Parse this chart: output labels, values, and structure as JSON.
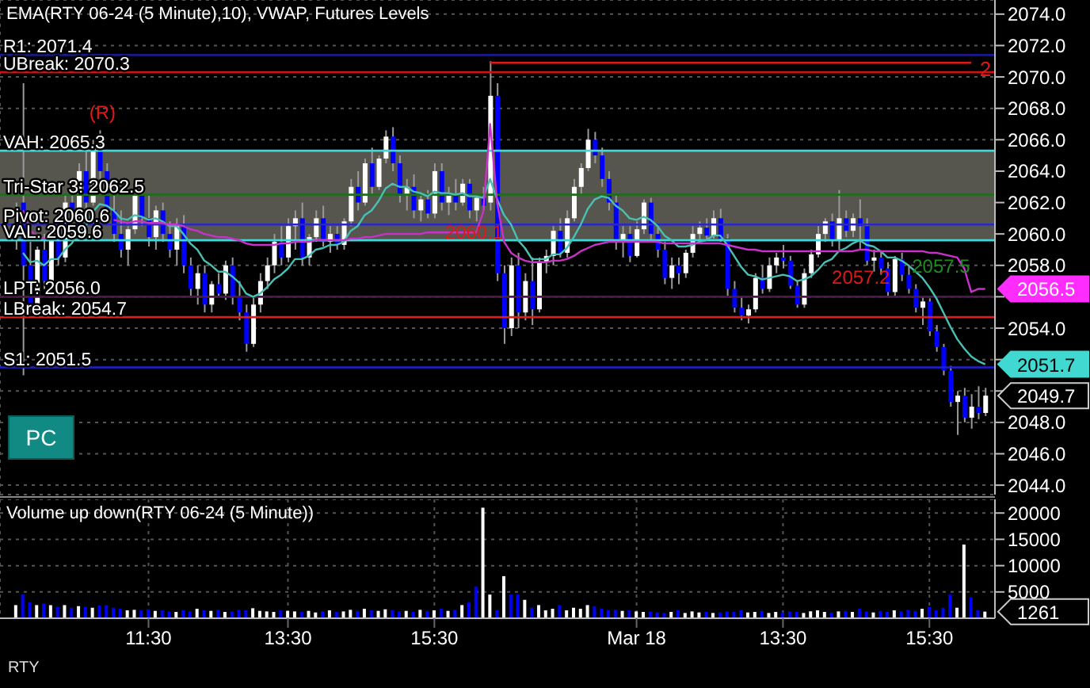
{
  "chart_data": [
    {
      "type": "candlestick",
      "title": "EMA(RTY 06-24 (5 Minute),10), VWAP, Futures Levels",
      "tick_labels": "y",
      "grid": true,
      "categories": [
        null,
        null,
        null,
        null,
        null,
        null,
        null,
        null,
        null,
        null,
        null,
        null,
        null,
        null,
        null,
        null,
        null,
        null,
        null,
        null,
        null,
        null,
        null,
        null,
        null,
        null,
        null,
        null,
        null,
        null,
        null,
        null,
        null,
        null,
        null,
        null,
        null,
        null,
        null,
        null,
        null,
        null,
        null,
        null,
        null,
        null,
        null,
        null,
        null,
        null,
        null,
        null,
        null,
        null,
        null,
        null,
        null,
        null,
        null,
        null,
        null,
        null,
        null,
        null,
        null,
        null,
        null,
        null,
        null,
        null,
        null,
        null,
        null,
        null,
        null,
        null,
        null,
        null,
        null,
        null,
        null,
        null,
        null,
        null,
        null,
        null,
        null,
        null,
        null,
        null,
        null,
        null,
        null,
        null,
        null,
        null,
        null,
        null,
        null,
        null,
        null,
        null,
        null,
        null,
        null,
        null,
        null,
        null,
        null,
        null,
        null,
        null,
        null,
        null,
        null,
        null,
        null,
        null,
        null,
        null,
        null,
        null,
        null,
        null,
        null,
        null,
        null,
        null,
        null,
        null,
        null,
        null,
        null,
        null,
        null,
        null,
        null,
        null,
        null,
        null
      ],
      "ohlc": [
        [
          2061.0,
          2062.0,
          2059.0,
          2061.5
        ],
        [
          2062.0,
          2069.6,
          2051.0,
          2058.0
        ],
        [
          2058.0,
          2059.5,
          2055.0,
          2055.5
        ],
        [
          2055.5,
          2059.2,
          2054.8,
          2059.0
        ],
        [
          2059.0,
          2060.0,
          2056.5,
          2057.0
        ],
        [
          2057.0,
          2060.5,
          2056.8,
          2060.2
        ],
        [
          2060.2,
          2061.0,
          2058.0,
          2058.5
        ],
        [
          2058.5,
          2062.5,
          2058.2,
          2062.0
        ],
        [
          2062.0,
          2063.0,
          2060.5,
          2061.0
        ],
        [
          2061.0,
          2064.5,
          2060.8,
          2064.0
        ],
        [
          2064.0,
          2065.5,
          2061.5,
          2062.0
        ],
        [
          2062.0,
          2066.0,
          2061.8,
          2065.5
        ],
        [
          2065.5,
          2066.6,
          2063.5,
          2064.0
        ],
        [
          2064.0,
          2064.5,
          2061.0,
          2061.5
        ],
        [
          2061.5,
          2062.5,
          2059.5,
          2060.0
        ],
        [
          2060.0,
          2061.5,
          2058.5,
          2059.0
        ],
        [
          2059.0,
          2060.5,
          2058.0,
          2060.3
        ],
        [
          2060.3,
          2062.8,
          2060.0,
          2062.5
        ],
        [
          2062.5,
          2063.5,
          2060.5,
          2061.0
        ],
        [
          2061.0,
          2062.5,
          2059.2,
          2059.8
        ],
        [
          2059.8,
          2061.8,
          2059.0,
          2061.5
        ],
        [
          2061.5,
          2062.0,
          2059.5,
          2060.0
        ],
        [
          2060.0,
          2060.8,
          2058.5,
          2059.0
        ],
        [
          2059.0,
          2061.0,
          2058.0,
          2060.5
        ],
        [
          2060.5,
          2061.2,
          2057.5,
          2058.0
        ],
        [
          2058.0,
          2058.5,
          2056.0,
          2056.5
        ],
        [
          2056.5,
          2058.0,
          2055.5,
          2057.5
        ],
        [
          2057.5,
          2058.0,
          2055.0,
          2055.5
        ],
        [
          2055.5,
          2057.0,
          2055.0,
          2056.8
        ],
        [
          2056.8,
          2057.5,
          2056.0,
          2056.2
        ],
        [
          2056.2,
          2058.3,
          2055.8,
          2058.0
        ],
        [
          2058.0,
          2058.5,
          2055.5,
          2056.0
        ],
        [
          2056.0,
          2057.0,
          2054.5,
          2055.0
        ],
        [
          2055.0,
          2055.5,
          2052.5,
          2053.0
        ],
        [
          2053.0,
          2056.0,
          2052.8,
          2055.5
        ],
        [
          2055.5,
          2057.5,
          2055.0,
          2057.0
        ],
        [
          2057.0,
          2058.5,
          2056.5,
          2058.0
        ],
        [
          2058.0,
          2060.0,
          2057.5,
          2059.5
        ],
        [
          2059.5,
          2060.5,
          2058.0,
          2058.5
        ],
        [
          2058.5,
          2061.0,
          2058.2,
          2060.5
        ],
        [
          2060.5,
          2061.5,
          2059.0,
          2061.0
        ],
        [
          2061.0,
          2062.0,
          2058.0,
          2058.5
        ],
        [
          2058.5,
          2060.0,
          2058.0,
          2059.8
        ],
        [
          2059.8,
          2061.5,
          2059.5,
          2061.0
        ],
        [
          2061.0,
          2061.8,
          2059.2,
          2059.5
        ],
        [
          2059.5,
          2060.5,
          2058.8,
          2060.0
        ],
        [
          2060.0,
          2060.5,
          2059.0,
          2059.3
        ],
        [
          2059.3,
          2061.0,
          2059.0,
          2060.8
        ],
        [
          2060.8,
          2063.5,
          2060.5,
          2063.0
        ],
        [
          2063.0,
          2064.0,
          2061.5,
          2062.0
        ],
        [
          2062.0,
          2064.8,
          2061.8,
          2064.5
        ],
        [
          2064.5,
          2065.5,
          2062.5,
          2063.0
        ],
        [
          2063.0,
          2065.0,
          2062.8,
          2064.8
        ],
        [
          2064.8,
          2066.6,
          2064.5,
          2066.2
        ],
        [
          2066.2,
          2066.8,
          2064.0,
          2064.5
        ],
        [
          2064.5,
          2065.0,
          2062.0,
          2062.5
        ],
        [
          2062.5,
          2063.5,
          2061.5,
          2063.0
        ],
        [
          2063.0,
          2063.8,
          2061.0,
          2061.5
        ],
        [
          2061.5,
          2062.5,
          2060.8,
          2062.2
        ],
        [
          2062.2,
          2062.8,
          2061.0,
          2061.3
        ],
        [
          2061.3,
          2064.5,
          2061.0,
          2064.0
        ],
        [
          2064.0,
          2064.5,
          2061.5,
          2062.0
        ],
        [
          2062.0,
          2063.0,
          2061.2,
          2062.5
        ],
        [
          2062.5,
          2063.5,
          2061.5,
          2062.0
        ],
        [
          2062.0,
          2063.5,
          2061.8,
          2063.2
        ],
        [
          2063.2,
          2063.5,
          2061.0,
          2061.5
        ],
        [
          2061.5,
          2062.5,
          2060.8,
          2062.3
        ],
        [
          2062.3,
          2063.0,
          2061.5,
          2061.8
        ],
        [
          2062.0,
          2071.0,
          2061.5,
          2068.8
        ],
        [
          2068.8,
          2069.6,
          2057.0,
          2057.5
        ],
        [
          2057.5,
          2058.0,
          2053.0,
          2054.0
        ],
        [
          2054.0,
          2058.5,
          2053.5,
          2058.0
        ],
        [
          2058.0,
          2058.8,
          2054.0,
          2055.0
        ],
        [
          2055.0,
          2057.5,
          2054.5,
          2057.0
        ],
        [
          2057.0,
          2058.5,
          2054.2,
          2055.2
        ],
        [
          2055.2,
          2058.5,
          2055.0,
          2058.2
        ],
        [
          2058.2,
          2059.0,
          2057.5,
          2058.6
        ],
        [
          2058.6,
          2060.5,
          2058.0,
          2060.2
        ],
        [
          2060.2,
          2061.0,
          2058.5,
          2058.8
        ],
        [
          2058.8,
          2061.5,
          2058.5,
          2061.0
        ],
        [
          2061.0,
          2063.5,
          2060.8,
          2063.0
        ],
        [
          2063.0,
          2064.5,
          2062.5,
          2064.2
        ],
        [
          2064.2,
          2066.7,
          2064.0,
          2066.0
        ],
        [
          2066.0,
          2066.5,
          2064.5,
          2065.0
        ],
        [
          2065.0,
          2065.5,
          2063.0,
          2063.5
        ],
        [
          2063.5,
          2064.0,
          2061.5,
          2062.0
        ],
        [
          2062.0,
          2062.5,
          2059.0,
          2059.5
        ],
        [
          2059.5,
          2060.5,
          2058.5,
          2060.0
        ],
        [
          2060.0,
          2060.5,
          2058.2,
          2058.6
        ],
        [
          2058.6,
          2060.8,
          2058.5,
          2060.3
        ],
        [
          2060.3,
          2062.2,
          2060.0,
          2062.0
        ],
        [
          2062.0,
          2062.3,
          2059.5,
          2060.0
        ],
        [
          2060.0,
          2060.5,
          2058.5,
          2059.0
        ],
        [
          2059.0,
          2059.5,
          2056.8,
          2057.2
        ],
        [
          2057.2,
          2058.5,
          2056.5,
          2058.0
        ],
        [
          2058.0,
          2058.5,
          2056.8,
          2057.5
        ],
        [
          2057.5,
          2059.0,
          2057.2,
          2058.8
        ],
        [
          2058.8,
          2060.5,
          2058.5,
          2060.0
        ],
        [
          2060.0,
          2060.8,
          2059.5,
          2060.4
        ],
        [
          2060.4,
          2061.0,
          2059.6,
          2059.9
        ],
        [
          2059.9,
          2061.5,
          2059.7,
          2061.0
        ],
        [
          2061.0,
          2061.6,
          2059.5,
          2059.7
        ],
        [
          2059.7,
          2060.0,
          2056.0,
          2056.5
        ],
        [
          2056.5,
          2057.0,
          2055.0,
          2055.3
        ],
        [
          2055.3,
          2056.0,
          2054.5,
          2054.8
        ],
        [
          2054.8,
          2055.5,
          2054.3,
          2055.2
        ],
        [
          2055.2,
          2057.5,
          2055.0,
          2057.2
        ],
        [
          2057.2,
          2058.0,
          2056.2,
          2056.5
        ],
        [
          2056.5,
          2058.5,
          2056.3,
          2058.0
        ],
        [
          2058.0,
          2058.8,
          2057.5,
          2058.5
        ],
        [
          2058.5,
          2059.3,
          2057.8,
          2058.3
        ],
        [
          2058.3,
          2058.6,
          2056.5,
          2056.7
        ],
        [
          2056.7,
          2057.0,
          2055.3,
          2055.5
        ],
        [
          2055.5,
          2057.8,
          2055.3,
          2057.5
        ],
        [
          2057.5,
          2059.0,
          2057.2,
          2058.7
        ],
        [
          2058.7,
          2060.5,
          2058.5,
          2060.0
        ],
        [
          2060.0,
          2061.0,
          2059.5,
          2060.8
        ],
        [
          2060.8,
          2061.3,
          2059.2,
          2059.6
        ],
        [
          2059.6,
          2062.8,
          2059.0,
          2061.0
        ],
        [
          2061.0,
          2061.5,
          2059.8,
          2060.2
        ],
        [
          2060.2,
          2061.3,
          2059.8,
          2061.0
        ],
        [
          2061.0,
          2062.2,
          2059.0,
          2060.5
        ],
        [
          2060.5,
          2061.0,
          2058.0,
          2058.3
        ],
        [
          2058.3,
          2059.0,
          2057.6,
          2058.5
        ],
        [
          2058.5,
          2058.9,
          2057.4,
          2057.8
        ],
        [
          2057.8,
          2058.2,
          2056.0,
          2056.3
        ],
        [
          2056.3,
          2058.6,
          2056.0,
          2058.4
        ],
        [
          2058.4,
          2058.8,
          2057.0,
          2057.4
        ],
        [
          2057.4,
          2058.0,
          2056.2,
          2056.5
        ],
        [
          2056.5,
          2056.8,
          2055.0,
          2055.3
        ],
        [
          2055.3,
          2056.0,
          2054.2,
          2055.7
        ],
        [
          2055.7,
          2055.9,
          2053.5,
          2053.8
        ],
        [
          2053.8,
          2054.2,
          2052.5,
          2052.8
        ],
        [
          2052.8,
          2053.0,
          2051.0,
          2051.3
        ],
        [
          2051.3,
          2051.6,
          2049.0,
          2049.3
        ],
        [
          2049.3,
          2050.0,
          2047.2,
          2049.7
        ],
        [
          2049.7,
          2050.2,
          2048.0,
          2048.3
        ],
        [
          2048.3,
          2049.8,
          2047.6,
          2049.0
        ],
        [
          2049.0,
          2050.3,
          2048.2,
          2048.6
        ],
        [
          2048.6,
          2050.2,
          2048.4,
          2049.7
        ]
      ],
      "colors": [
        "#ffffff",
        "#0000ff",
        "#0000ff",
        "#ffffff",
        "#0000ff",
        "#ffffff",
        "#0000ff",
        "#ffffff",
        "#0000ff",
        "#ffffff",
        "#0000ff",
        "#ffffff",
        "#0000ff",
        "#0000ff",
        "#0000ff",
        "#0000ff",
        "#ffffff",
        "#ffffff",
        "#0000ff",
        "#0000ff",
        "#ffffff",
        "#0000ff",
        "#0000ff",
        "#ffffff",
        "#0000ff",
        "#0000ff",
        "#ffffff",
        "#0000ff",
        "#ffffff",
        "#0000ff",
        "#ffffff",
        "#0000ff",
        "#0000ff",
        "#0000ff",
        "#ffffff",
        "#ffffff",
        "#ffffff",
        "#ffffff",
        "#0000ff",
        "#ffffff",
        "#ffffff",
        "#0000ff",
        "#ffffff",
        "#ffffff",
        "#0000ff",
        "#ffffff",
        "#0000ff",
        "#ffffff",
        "#ffffff",
        "#0000ff",
        "#ffffff",
        "#0000ff",
        "#ffffff",
        "#ffffff",
        "#0000ff",
        "#0000ff",
        "#ffffff",
        "#0000ff",
        "#ffffff",
        "#0000ff",
        "#ffffff",
        "#0000ff",
        "#ffffff",
        "#0000ff",
        "#ffffff",
        "#0000ff",
        "#ffffff",
        "#0000ff",
        "#ffffff",
        "#0000ff",
        "#0000ff",
        "#ffffff",
        "#0000ff",
        "#ffffff",
        "#0000ff",
        "#ffffff",
        "#ffffff",
        "#ffffff",
        "#0000ff",
        "#ffffff",
        "#ffffff",
        "#ffffff",
        "#ffffff",
        "#0000ff",
        "#0000ff",
        "#0000ff",
        "#0000ff",
        "#ffffff",
        "#0000ff",
        "#ffffff",
        "#ffffff",
        "#0000ff",
        "#0000ff",
        "#0000ff",
        "#ffffff",
        "#0000ff",
        "#ffffff",
        "#ffffff",
        "#ffffff",
        "#0000ff",
        "#ffffff",
        "#0000ff",
        "#0000ff",
        "#0000ff",
        "#0000ff",
        "#ffffff",
        "#ffffff",
        "#0000ff",
        "#ffffff",
        "#ffffff",
        "#0000ff",
        "#0000ff",
        "#0000ff",
        "#ffffff",
        "#ffffff",
        "#ffffff",
        "#ffffff",
        "#0000ff",
        "#ffffff",
        "#0000ff",
        "#ffffff",
        "#0000ff",
        "#0000ff",
        "#ffffff",
        "#0000ff",
        "#0000ff",
        "#ffffff",
        "#0000ff",
        "#0000ff",
        "#0000ff",
        "#ffffff",
        "#0000ff",
        "#0000ff",
        "#0000ff",
        "#0000ff",
        "#ffffff",
        "#0000ff",
        "#ffffff",
        "#0000ff",
        "#ffffff"
      ],
      "series": [
        {
          "type": "line",
          "color": "#48c0b4",
          "values": [
            null,
            2058.8,
            2058.2,
            2058.3,
            2058.0,
            2058.4,
            2058.4,
            2059.0,
            2059.4,
            2060.2,
            2060.5,
            2061.4,
            2061.9,
            2061.8,
            2061.5,
            2061.0,
            2060.9,
            2061.2,
            2061.1,
            2060.9,
            2061.0,
            2060.8,
            2060.5,
            2060.5,
            2060.0,
            2059.4,
            2059.0,
            2058.3,
            2058.0,
            2057.6,
            2057.6,
            2057.3,
            2056.9,
            2056.2,
            2056.0,
            2056.2,
            2056.6,
            2057.1,
            2057.4,
            2057.8,
            2058.4,
            2058.4,
            2058.6,
            2059.0,
            2059.1,
            2059.3,
            2059.3,
            2059.5,
            2060.2,
            2060.5,
            2061.2,
            2061.5,
            2062.1,
            2062.9,
            2063.2,
            2063.0,
            2063.0,
            2062.7,
            2062.6,
            2062.4,
            2062.7,
            2062.6,
            2062.6,
            2062.5,
            2062.6,
            2062.4,
            2062.4,
            2062.3,
            2063.5,
            2062.2,
            2061.2,
            2060.6,
            2059.6,
            2059.1,
            2058.4,
            2058.4,
            2058.4,
            2058.7,
            2058.7,
            2059.1,
            2059.8,
            2060.6,
            2061.6,
            2062.2,
            2062.4,
            2062.3,
            2061.8,
            2061.5,
            2061.0,
            2060.9,
            2061.1,
            2060.9,
            2060.5,
            2059.9,
            2059.6,
            2059.2,
            2059.2,
            2059.3,
            2059.5,
            2059.6,
            2059.9,
            2059.9,
            2059.3,
            2058.6,
            2057.9,
            2057.4,
            2057.3,
            2057.1,
            2057.2,
            2057.3,
            2057.4,
            2057.3,
            2057.0,
            2057.1,
            2057.3,
            2057.7,
            2058.2,
            2058.4,
            2058.9,
            2059.1,
            2059.4,
            2059.6,
            2059.3,
            2059.2,
            2058.9,
            2058.5,
            2058.5,
            2058.3,
            2058.0,
            2057.6,
            2057.2,
            2056.6,
            2055.9,
            2055.0,
            2054.1,
            2053.3,
            2052.7,
            2052.2,
            2051.9,
            2051.7
          ]
        },
        {
          "type": "line",
          "color": "#c832c8",
          "values": [
            null,
            2061.5,
            2060.2,
            2059.9,
            2059.7,
            2059.8,
            null,
            null,
            null,
            null,
            null,
            null,
            null,
            null,
            2060.9,
            2060.8,
            2060.7,
            2060.8,
            2060.8,
            2060.7,
            2060.7,
            2060.7,
            2060.6,
            2060.6,
            2060.5,
            2060.3,
            2060.2,
            2060.0,
            2059.9,
            2059.8,
            2059.8,
            2059.7,
            2059.6,
            2059.4,
            2059.3,
            2059.3,
            2059.3,
            2059.3,
            2059.4,
            2059.4,
            2059.5,
            2059.5,
            2059.5,
            2059.6,
            2059.6,
            2059.6,
            2059.6,
            2059.6,
            2059.7,
            2059.7,
            2059.8,
            2059.8,
            2059.9,
            2060.0,
            2060.0,
            2060.0,
            2060.0,
            2060.0,
            2060.0,
            2060.1,
            2060.1,
            2060.1,
            2060.1,
            2060.1,
            2060.1,
            2060.1,
            2060.1,
            2061.4,
            2067.0,
            2062.0,
            2059.5,
            2058.8,
            2058.5,
            2058.3,
            2058.2,
            2058.2,
            2058.2,
            2058.3,
            2058.3,
            2058.4,
            2058.6,
            2058.9,
            2059.1,
            2059.3,
            2059.4,
            2059.5,
            2059.5,
            2059.5,
            2059.5,
            2059.5,
            2059.5,
            2059.5,
            2059.5,
            2059.4,
            2059.4,
            2059.4,
            2059.4,
            2059.4,
            2059.4,
            2059.4,
            2059.4,
            2059.4,
            2059.3,
            2059.2,
            2059.1,
            2059.0,
            2059.0,
            2058.9,
            2058.9,
            2058.9,
            2058.9,
            2058.9,
            2058.9,
            2058.9,
            2058.9,
            2058.9,
            2058.9,
            2058.9,
            2058.9,
            2058.9,
            2058.9,
            2059.0,
            2059.0,
            2058.9,
            2058.9,
            2058.9,
            2058.9,
            2058.9,
            2058.9,
            2058.9,
            2058.9,
            2058.8,
            2058.8,
            2058.7,
            2058.6,
            2058.5,
            2057.8,
            2056.3,
            2056.5,
            2056.5
          ]
        }
      ],
      "ylim": [
        2043.4,
        2074.9
      ],
      "yticks": [
        {
          "value": 2044,
          "label": "2044.0"
        },
        {
          "value": 2046,
          "label": "2046.0"
        },
        {
          "value": 2048,
          "label": "2048.0"
        },
        {
          "value": 2050,
          "label": null
        },
        {
          "value": 2052,
          "label": null
        },
        {
          "value": 2054,
          "label": "2054.0"
        },
        {
          "value": 2056,
          "label": null
        },
        {
          "value": 2058,
          "label": "2058.0"
        },
        {
          "value": 2060,
          "label": "2060.0"
        },
        {
          "value": 2062,
          "label": "2062.0"
        },
        {
          "value": 2064,
          "label": "2064.0"
        },
        {
          "value": 2066,
          "label": "2066.0"
        },
        {
          "value": 2068,
          "label": "2068.0"
        },
        {
          "value": 2070,
          "label": "2070.0"
        },
        {
          "value": 2072,
          "label": "2072.0"
        },
        {
          "value": 2074,
          "label": "2074.0"
        }
      ],
      "bands": [
        {
          "axis": "y",
          "from": 2059.6,
          "to": 2065.3,
          "color": "#57564e"
        }
      ],
      "ref_lines": [
        {
          "axis": "y",
          "value": 2071.4,
          "label": "R1: 2071.4",
          "color": "#1a1a8c"
        },
        {
          "axis": "y",
          "value": 2070.3,
          "label": "UBreak: 2070.3",
          "color": "#c81414"
        },
        {
          "axis": "y",
          "value": 2065.3,
          "label": "VAH: 2065.3",
          "color": "#40d8d8"
        },
        {
          "axis": "y",
          "value": 2062.5,
          "label": "Tri-Star 3: 2062.5",
          "color": "#1e6e1e"
        },
        {
          "axis": "y",
          "value": 2060.6,
          "label": "Pivot: 2060.6",
          "color": "#2828c8"
        },
        {
          "axis": "y",
          "value": 2059.6,
          "label": "VAL: 2059.6",
          "color": "#40d8d8"
        },
        {
          "axis": "y",
          "value": 2056.0,
          "label": "LPT: 2056.0",
          "color": "#4a1a4a"
        },
        {
          "axis": "y",
          "value": 2054.7,
          "label": "LBreak: 2054.7",
          "color": "#dc1e1e"
        },
        {
          "axis": "y",
          "value": 2051.5,
          "label": "S1: 2051.5",
          "color": "#2020d0"
        },
        {
          "axis": "y",
          "value": 2070.9,
          "color": "#e01818"
        }
      ],
      "annotations": [
        "(R)",
        {
          "text": "2060.1",
          "y": 2060.1
        },
        "2057.2",
        "2057.5",
        "2056.5",
        "2051.7",
        "2049.7",
        "PC",
        "2"
      ]
    },
    {
      "type": "bar",
      "title": "Volume up down(RTY 06-24 (5 Minute))",
      "grid": true,
      "categories": [
        null,
        null,
        null,
        null,
        null,
        null,
        null,
        null,
        null,
        null,
        null,
        null,
        null,
        null,
        null,
        null,
        null,
        null,
        null,
        "11:30",
        null,
        null,
        null,
        null,
        null,
        null,
        null,
        null,
        null,
        null,
        null,
        null,
        null,
        null,
        null,
        null,
        null,
        null,
        null,
        "13:30",
        null,
        null,
        null,
        null,
        null,
        null,
        null,
        null,
        null,
        null,
        null,
        null,
        null,
        null,
        null,
        null,
        null,
        null,
        null,
        null,
        "15:30",
        null,
        null,
        null,
        null,
        null,
        null,
        null,
        null,
        null,
        null,
        null,
        null,
        null,
        null,
        null,
        null,
        null,
        null,
        null,
        null,
        null,
        null,
        null,
        null,
        null,
        null,
        null,
        null,
        "Mar 18",
        null,
        null,
        null,
        null,
        null,
        null,
        null,
        null,
        null,
        null,
        null,
        null,
        null,
        null,
        null,
        null,
        null,
        null,
        null,
        null,
        "13:30",
        null,
        null,
        null,
        null,
        null,
        null,
        null,
        null,
        null,
        null,
        null,
        null,
        null,
        null,
        null,
        null,
        null,
        null,
        null,
        null,
        "15:30",
        null,
        null,
        null,
        null,
        null,
        null,
        null,
        null
      ],
      "values": [
        2500,
        4500,
        3000,
        2500,
        2800,
        2500,
        2200,
        2500,
        2000,
        2300,
        2200,
        2000,
        2400,
        2500,
        2000,
        1800,
        1500,
        1600,
        1500,
        1700,
        1400,
        1500,
        1300,
        1200,
        1500,
        1300,
        1800,
        1500,
        1400,
        1600,
        1200,
        1300,
        1600,
        1500,
        1900,
        1400,
        1300,
        1200,
        1500,
        1400,
        1300,
        1200,
        1400,
        1100,
        1300,
        1500,
        1200,
        1300,
        1600,
        1400,
        1800,
        1500,
        1400,
        1700,
        1500,
        1300,
        1400,
        1200,
        1600,
        1400,
        1500,
        1800,
        1400,
        1600,
        2500,
        3000,
        6000,
        21000,
        4500,
        1500,
        8000,
        4500,
        4500,
        3500,
        2000,
        2500,
        1500,
        1800,
        2500,
        1500,
        2000,
        1800,
        2500,
        2300,
        1800,
        1500,
        1600,
        1400,
        1500,
        1300,
        1200,
        1300,
        1100,
        1000,
        1200,
        1500,
        1000,
        1300,
        1100,
        1200,
        1000,
        1100,
        1300,
        1200,
        1500,
        1100,
        1200,
        1400,
        1000,
        1200,
        1100,
        1300,
        1200,
        1000,
        1300,
        1500,
        1200,
        1100,
        1300,
        1400,
        1200,
        1800,
        1300,
        1100,
        1400,
        1200,
        1500,
        1300,
        1600,
        1400,
        1800,
        2200,
        1500,
        2000,
        4500,
        2000,
        14000,
        4000,
        1500,
        1261
      ],
      "colors": [
        "#ffffff",
        "#0000ff",
        "#0000ff",
        "#ffffff",
        "#0000ff",
        "#ffffff",
        "#0000ff",
        "#ffffff",
        "#0000ff",
        "#ffffff",
        "#0000ff",
        "#ffffff",
        "#0000ff",
        "#0000ff",
        "#0000ff",
        "#0000ff",
        "#ffffff",
        "#ffffff",
        "#0000ff",
        "#0000ff",
        "#ffffff",
        "#0000ff",
        "#0000ff",
        "#ffffff",
        "#0000ff",
        "#0000ff",
        "#ffffff",
        "#0000ff",
        "#ffffff",
        "#0000ff",
        "#ffffff",
        "#0000ff",
        "#0000ff",
        "#0000ff",
        "#ffffff",
        "#ffffff",
        "#ffffff",
        "#ffffff",
        "#0000ff",
        "#ffffff",
        "#ffffff",
        "#0000ff",
        "#ffffff",
        "#ffffff",
        "#0000ff",
        "#ffffff",
        "#0000ff",
        "#ffffff",
        "#ffffff",
        "#0000ff",
        "#ffffff",
        "#0000ff",
        "#ffffff",
        "#ffffff",
        "#0000ff",
        "#0000ff",
        "#ffffff",
        "#0000ff",
        "#ffffff",
        "#0000ff",
        "#ffffff",
        "#0000ff",
        "#ffffff",
        "#0000ff",
        "#ffffff",
        "#0000ff",
        "#0000ff",
        "#ffffff",
        "#ffffff",
        "#0000ff",
        "#ffffff",
        "#0000ff",
        "#0000ff",
        "#ffffff",
        "#0000ff",
        "#ffffff",
        "#ffffff",
        "#ffffff",
        "#0000ff",
        "#ffffff",
        "#ffffff",
        "#ffffff",
        "#ffffff",
        "#0000ff",
        "#0000ff",
        "#0000ff",
        "#0000ff",
        "#ffffff",
        "#0000ff",
        "#ffffff",
        "#ffffff",
        "#0000ff",
        "#0000ff",
        "#0000ff",
        "#ffffff",
        "#0000ff",
        "#ffffff",
        "#ffffff",
        "#ffffff",
        "#0000ff",
        "#ffffff",
        "#0000ff",
        "#0000ff",
        "#0000ff",
        "#0000ff",
        "#ffffff",
        "#ffffff",
        "#0000ff",
        "#ffffff",
        "#ffffff",
        "#0000ff",
        "#0000ff",
        "#0000ff",
        "#ffffff",
        "#ffffff",
        "#ffffff",
        "#ffffff",
        "#0000ff",
        "#ffffff",
        "#0000ff",
        "#ffffff",
        "#0000ff",
        "#0000ff",
        "#ffffff",
        "#0000ff",
        "#0000ff",
        "#ffffff",
        "#0000ff",
        "#0000ff",
        "#0000ff",
        "#ffffff",
        "#0000ff",
        "#0000ff",
        "#0000ff",
        "#0000ff",
        "#ffffff",
        "#ffffff",
        "#0000ff",
        "#0000ff",
        "#ffffff"
      ],
      "ylim": [
        0,
        22600
      ],
      "yticks": [
        5000,
        10000,
        15000,
        20000
      ],
      "annotations": [
        "1261",
        "RTY"
      ]
    }
  ]
}
